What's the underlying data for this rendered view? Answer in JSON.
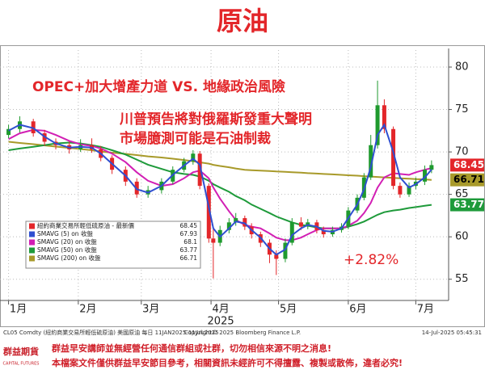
{
  "chart_data": {
    "type": "candlestick",
    "title": "原油",
    "annotations": [
      "OPEC+加大增產力道 VS. 地緣政治風險",
      "川普預告將對俄羅斯發重大聲明",
      "市場臆測可能是石油制裁",
      "+2.82%"
    ],
    "x": [
      0,
      5,
      11,
      16,
      21,
      27,
      32,
      37,
      41,
      46,
      52,
      57,
      62,
      68,
      73,
      78,
      82,
      85,
      89,
      91,
      94,
      98,
      101,
      105,
      108,
      112,
      116,
      119,
      123,
      126,
      130,
      133,
      137,
      140,
      144,
      148,
      151,
      155,
      158,
      161,
      164,
      167,
      171,
      174,
      178,
      181,
      185,
      188
    ],
    "xlim": [
      -2,
      192
    ],
    "xticks": [
      {
        "value": 0,
        "label": "1月"
      },
      {
        "value": 31,
        "label": "2月"
      },
      {
        "value": 59,
        "label": "3月"
      },
      {
        "value": 90,
        "label": "4月"
      },
      {
        "value": 120,
        "label": "5月"
      },
      {
        "value": 151,
        "label": "6月"
      },
      {
        "value": 181,
        "label": "7月"
      }
    ],
    "year_label": "2025",
    "ylim": [
      52.5,
      82
    ],
    "yticks": [
      55,
      60,
      65,
      70,
      75,
      80
    ],
    "grid": true,
    "candles": {
      "name": "紐約商業交易所輕低硫原油 - 最新價",
      "up_color": "#1f9a2e",
      "down_color": "#e3262a",
      "last": 68.45,
      "open": [
        72.0,
        72.7,
        73.6,
        72.2,
        71.2,
        70.8,
        70.3,
        70.8,
        70.3,
        69.3,
        67.9,
        66.5,
        65.0,
        65.5,
        66.5,
        67.9,
        68.9,
        69.8,
        66.0,
        59.8,
        59.3,
        60.8,
        61.7,
        62.2,
        61.2,
        60.3,
        59.3,
        57.9,
        57.4,
        59.3,
        61.7,
        61.2,
        61.7,
        60.8,
        60.3,
        60.8,
        61.2,
        63.1,
        64.6,
        67.0,
        70.8,
        75.5,
        72.7,
        66.0,
        65.0,
        66.0,
        66.5,
        67.9
      ],
      "high": [
        73.2,
        74.2,
        73.9,
        72.6,
        71.6,
        71.2,
        71.5,
        71.6,
        70.7,
        69.6,
        68.3,
        66.9,
        66.0,
        66.9,
        68.3,
        69.3,
        70.2,
        70.1,
        66.3,
        61.0,
        61.3,
        62.2,
        62.8,
        62.5,
        61.6,
        60.6,
        59.7,
        58.4,
        59.8,
        62.2,
        62.3,
        62.1,
        62.0,
        61.2,
        61.2,
        61.6,
        63.5,
        65.0,
        67.5,
        72.0,
        78.4,
        76.2,
        73.0,
        66.4,
        66.4,
        67.0,
        68.4,
        69.0
      ],
      "low": [
        71.6,
        72.3,
        71.8,
        70.7,
        70.3,
        69.8,
        70.0,
        69.9,
        68.9,
        67.4,
        66.0,
        64.6,
        64.6,
        65.1,
        66.2,
        67.6,
        68.5,
        65.6,
        59.3,
        55.1,
        58.9,
        60.4,
        61.3,
        60.8,
        59.8,
        58.8,
        56.9,
        55.5,
        57.0,
        59.0,
        60.8,
        60.9,
        60.4,
        59.9,
        60.0,
        60.5,
        60.9,
        62.8,
        64.3,
        66.7,
        70.4,
        72.2,
        65.6,
        64.6,
        64.7,
        65.6,
        66.1,
        67.5
      ],
      "close": [
        72.7,
        73.6,
        72.2,
        71.2,
        70.8,
        70.3,
        70.8,
        70.3,
        69.3,
        67.9,
        66.5,
        65.0,
        65.5,
        66.5,
        67.9,
        68.9,
        69.8,
        66.0,
        59.8,
        59.3,
        60.8,
        61.7,
        62.2,
        61.2,
        60.3,
        59.3,
        57.9,
        57.4,
        59.3,
        61.7,
        61.2,
        61.7,
        60.8,
        60.3,
        60.8,
        61.2,
        63.1,
        64.6,
        67.0,
        70.8,
        75.5,
        72.7,
        66.0,
        65.0,
        66.0,
        66.5,
        67.9,
        68.45
      ],
      "flag": true
    },
    "series": [
      {
        "name": "SMAVG (5)  on 收盤",
        "color": "#2f4fd0",
        "last": 67.93,
        "flag": false,
        "values": [
          72.5,
          73.2,
          72.8,
          71.8,
          71.0,
          70.5,
          70.6,
          70.5,
          69.8,
          68.6,
          67.2,
          65.6,
          65.2,
          66.0,
          67.3,
          68.4,
          69.2,
          68.5,
          63.5,
          61.0,
          60.0,
          61.0,
          61.8,
          61.6,
          60.8,
          59.9,
          58.6,
          57.9,
          58.5,
          60.2,
          61.0,
          61.4,
          61.2,
          60.7,
          60.6,
          61.0,
          62.2,
          63.8,
          65.6,
          68.2,
          72.0,
          73.2,
          70.0,
          67.0,
          65.8,
          66.2,
          67.0,
          67.93
        ]
      },
      {
        "name": "SMAVG (20)  on 收盤",
        "color": "#d21fb4",
        "last": 68.1,
        "flag": false,
        "values": [
          71.5,
          72.2,
          72.6,
          72.5,
          72.0,
          71.3,
          70.9,
          70.7,
          70.4,
          69.8,
          68.8,
          67.6,
          66.6,
          66.0,
          66.2,
          66.9,
          67.6,
          67.8,
          66.9,
          65.8,
          64.5,
          63.0,
          62.0,
          61.4,
          61.2,
          61.0,
          60.4,
          59.9,
          59.6,
          59.6,
          59.9,
          60.3,
          60.8,
          61.0,
          61.0,
          61.0,
          61.3,
          61.9,
          62.8,
          64.0,
          65.8,
          67.0,
          67.5,
          67.4,
          67.3,
          67.6,
          67.9,
          68.1
        ]
      },
      {
        "name": "SMAVG (50)  on 收盤",
        "color": "#1e9a3a",
        "last": 63.77,
        "flag": true,
        "values": [
          70.2,
          70.4,
          70.6,
          70.8,
          71.0,
          71.1,
          71.0,
          70.8,
          70.6,
          70.2,
          69.7,
          69.1,
          68.5,
          68.0,
          67.6,
          67.4,
          67.3,
          67.1,
          66.6,
          66.2,
          65.8,
          65.3,
          64.8,
          64.3,
          63.8,
          63.3,
          62.8,
          62.4,
          62.0,
          61.7,
          61.4,
          61.3,
          61.1,
          61.0,
          61.0,
          61.0,
          61.2,
          61.5,
          61.8,
          62.2,
          62.6,
          62.9,
          63.1,
          63.2,
          63.4,
          63.5,
          63.65,
          63.77
        ]
      },
      {
        "name": "SMAVG (200)  on 收盤",
        "color": "#a89a2a",
        "last": 66.71,
        "flag": true,
        "values": [
          71.2,
          71.06,
          70.91,
          70.77,
          70.63,
          70.48,
          70.34,
          70.2,
          70.05,
          69.91,
          69.77,
          69.63,
          69.48,
          69.34,
          69.2,
          69.05,
          68.91,
          68.77,
          68.62,
          68.48,
          68.34,
          68.19,
          68.05,
          67.9,
          67.85,
          67.8,
          67.75,
          67.7,
          67.65,
          67.6,
          67.55,
          67.5,
          67.45,
          67.4,
          67.35,
          67.3,
          67.25,
          67.2,
          67.15,
          67.1,
          67.05,
          67.0,
          66.95,
          66.9,
          66.85,
          66.8,
          66.76,
          66.71
        ]
      }
    ]
  },
  "footer": {
    "source": "CL05 Comdty (紐約商業交易所輕低硫原油) 美國原油    每日 11JAN2025-11JUL2025",
    "copyright": "Copyright© 2025 Bloomberg Finance L.P.",
    "timestamp": "14-Jul-2025 05:45:31"
  },
  "logo": {
    "name": "群益期貨",
    "english": "CAPITAL FUTURES"
  },
  "disclaimer": [
    "群益早安講師並無經營任何通信群組或社群，切勿相信來源不明之消息!",
    "本檔案文件僅供群益早安節目參考，相關資訊未經許可不得擅露、複製或散佈，違者必究!"
  ]
}
